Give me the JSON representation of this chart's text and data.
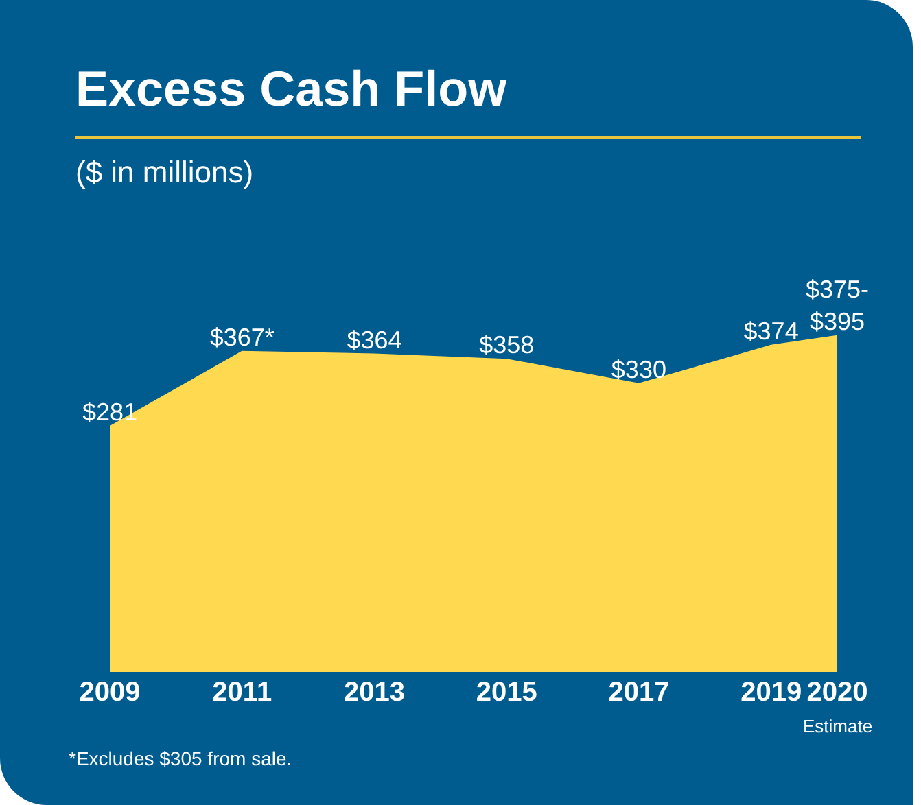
{
  "chart_data": {
    "type": "area",
    "title": "Excess Cash Flow",
    "subtitle": "($ in millions)",
    "x": [
      2009,
      2011,
      2013,
      2015,
      2017,
      2019,
      2020
    ],
    "values": [
      281,
      367,
      364,
      358,
      330,
      374,
      385
    ],
    "value_labels": [
      "$281",
      "$367*",
      "$364",
      "$358",
      "$330",
      "$374",
      "$375-\n$395"
    ],
    "color": "#ffd94f",
    "xlim": [
      2009,
      2020
    ],
    "xticks": [
      2009,
      2011,
      2013,
      2015,
      2017,
      2019,
      2020
    ],
    "tick_labels": "x",
    "grid": false,
    "legend": false,
    "annotations": [
      "Estimate",
      "*Excludes $305 from sale."
    ]
  }
}
